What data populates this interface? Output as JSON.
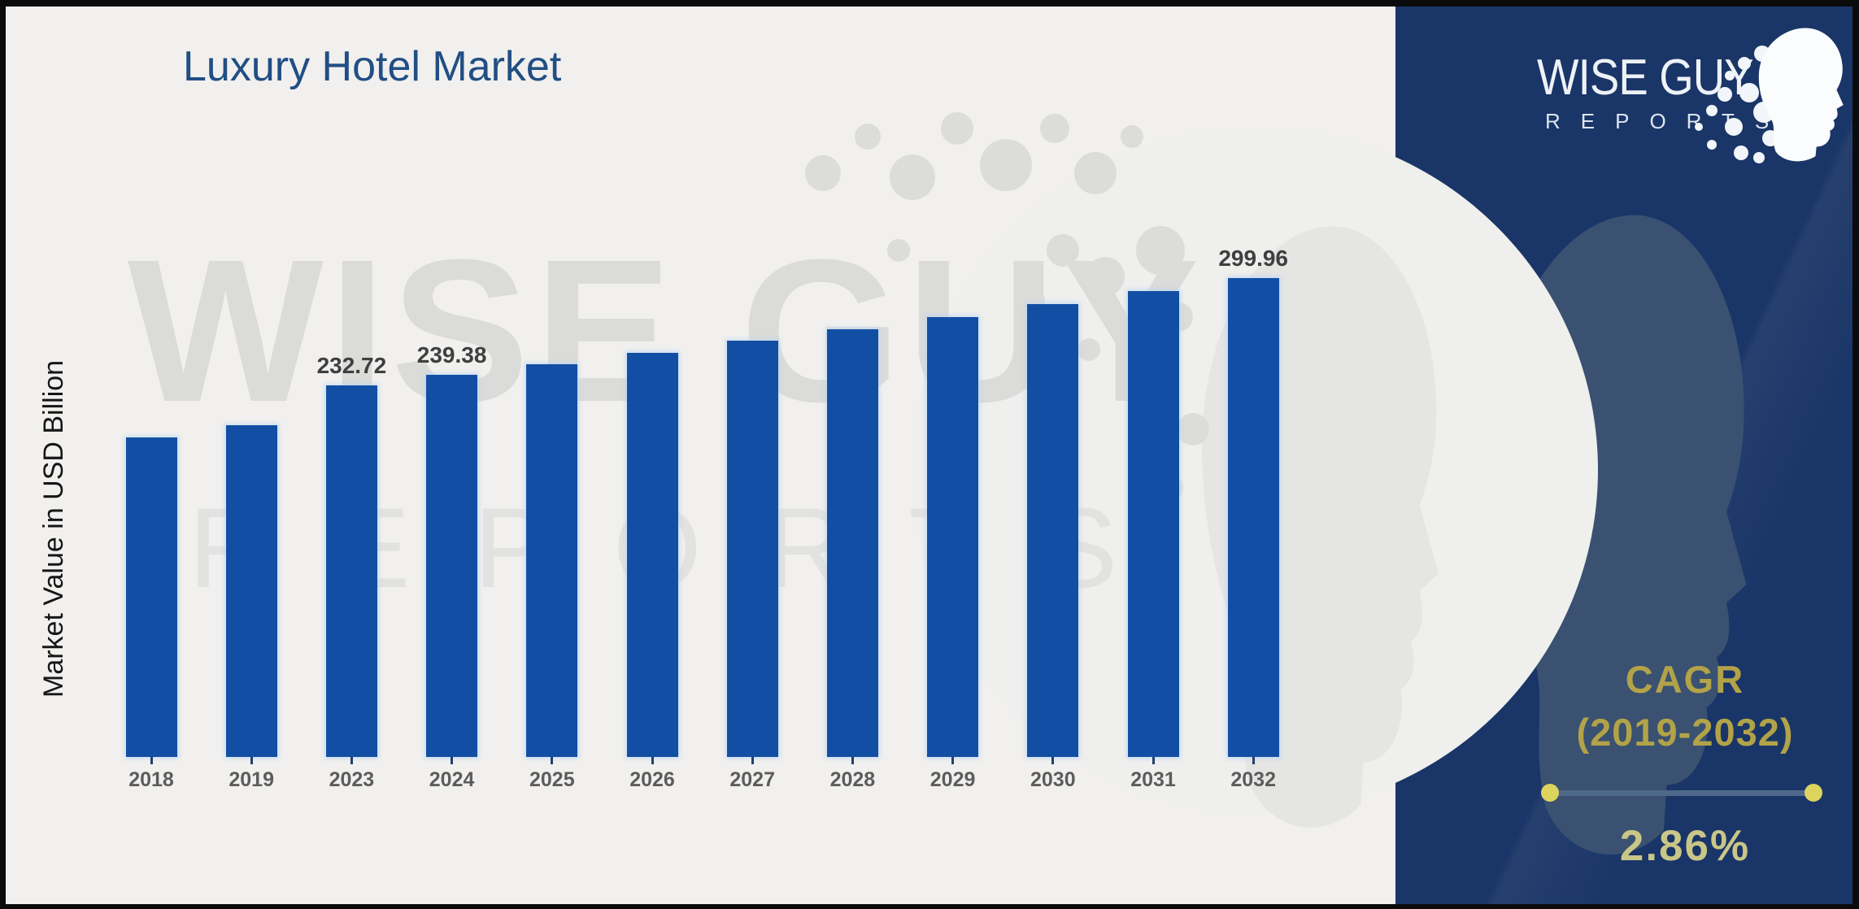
{
  "title": "Luxury Hotel Market",
  "y_axis_label": "Market Value in USD Billion",
  "brand": {
    "logo_line1": "WISE GUY",
    "logo_line2": "REPORTS",
    "watermark_line1": "WISE GUY",
    "watermark_line2": "REPORTS"
  },
  "cagr": {
    "heading": "CAGR",
    "range": "(2019-2032)",
    "value": "2.86%"
  },
  "colors": {
    "bar": "#124fa4",
    "panel": "#1a3567",
    "title": "#214e84",
    "gold": "#b2a348",
    "light_gold": "#c9c688"
  },
  "chart_data": {
    "type": "bar",
    "title": "Luxury Hotel Market",
    "xlabel": "",
    "ylabel": "Market Value in USD Billion",
    "categories": [
      "2018",
      "2019",
      "2023",
      "2024",
      "2025",
      "2026",
      "2027",
      "2028",
      "2029",
      "2030",
      "2031",
      "2032"
    ],
    "values": [
      200.0,
      207.8,
      232.72,
      239.38,
      246.23,
      253.27,
      260.51,
      267.96,
      275.63,
      283.51,
      291.62,
      299.96
    ],
    "data_labels": [
      "",
      "",
      "232.72",
      "239.38",
      "",
      "",
      "",
      "",
      "",
      "",
      "",
      "299.96"
    ],
    "ylim": [
      0,
      320
    ],
    "grid": false,
    "legend": "none",
    "bar_color": "#124fa4",
    "units": "USD Billion",
    "cagr_annotation": "CAGR (2019-2032) 2.86%"
  }
}
